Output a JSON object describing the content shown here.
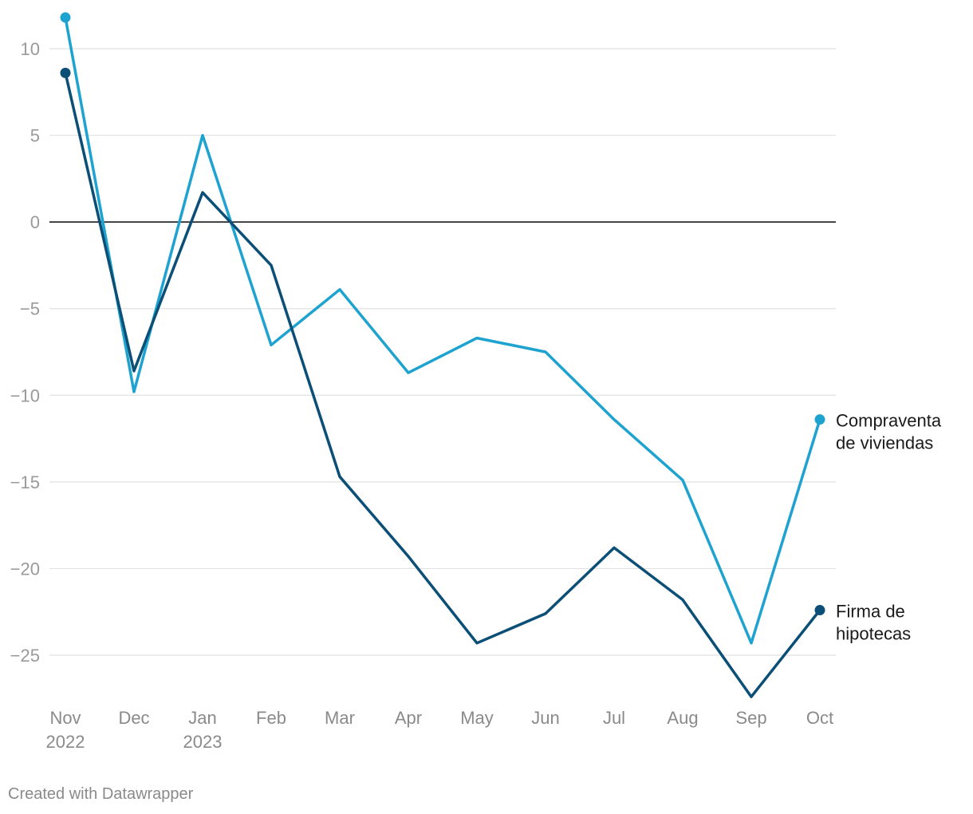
{
  "chart_data": {
    "type": "line",
    "title": "",
    "xlabel": "",
    "ylabel": "",
    "ylim": [
      -28,
      12
    ],
    "yticks": [
      10,
      5,
      0,
      -5,
      -10,
      -15,
      -20,
      -25
    ],
    "ytick_labels": [
      "10",
      "5",
      "0",
      "−5",
      "−10",
      "−15",
      "−20",
      "−25"
    ],
    "categories": [
      "Nov",
      "Dec",
      "Jan",
      "Feb",
      "Mar",
      "Apr",
      "May",
      "Jun",
      "Jul",
      "Aug",
      "Sep",
      "Oct"
    ],
    "category_years": [
      "2022",
      "",
      "2023",
      "",
      "",
      "",
      "",
      "",
      "",
      "",
      "",
      ""
    ],
    "series": [
      {
        "name": "Compraventa de viviendas",
        "label_lines": [
          "Compraventa",
          "de viviendas"
        ],
        "color": "#1ea3d0",
        "values": [
          11.8,
          -9.8,
          5.0,
          -7.1,
          -3.9,
          -8.7,
          -6.7,
          -7.5,
          -11.4,
          -14.9,
          -24.3,
          -11.4
        ]
      },
      {
        "name": "Firma de hipotecas",
        "label_lines": [
          "Firma de",
          "hipotecas"
        ],
        "color": "#0b4f77",
        "values": [
          8.6,
          -8.6,
          1.7,
          -2.5,
          -14.7,
          -19.3,
          -24.3,
          -22.6,
          -18.8,
          -21.8,
          -27.4,
          -22.4
        ]
      }
    ]
  },
  "footer": {
    "credit": "Created with Datawrapper"
  }
}
